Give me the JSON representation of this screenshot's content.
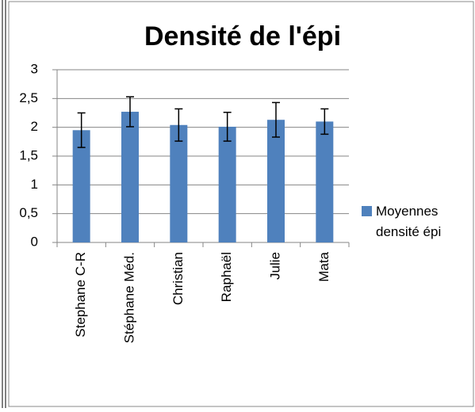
{
  "chart_data": {
    "type": "bar",
    "title": "Densité de l'épi",
    "categories": [
      "Stephane C-R",
      "Stéphane Méd.",
      "Christian",
      "Raphaël",
      "Julie",
      "Mata"
    ],
    "series": [
      {
        "name": "Moyennes densité épi",
        "color": "#4f81bd",
        "values": [
          1.95,
          2.27,
          2.04,
          2.01,
          2.13,
          2.1
        ],
        "errors": [
          0.3,
          0.26,
          0.28,
          0.25,
          0.3,
          0.22
        ]
      }
    ],
    "ylim": [
      0,
      3
    ],
    "yticks": [
      0,
      {
        "value": 0.5,
        "label": "0,5"
      },
      1,
      {
        "value": 1.5,
        "label": "1,5"
      },
      2,
      {
        "value": 2.5,
        "label": "2,5"
      },
      3
    ],
    "grid": true,
    "legend": "right"
  }
}
